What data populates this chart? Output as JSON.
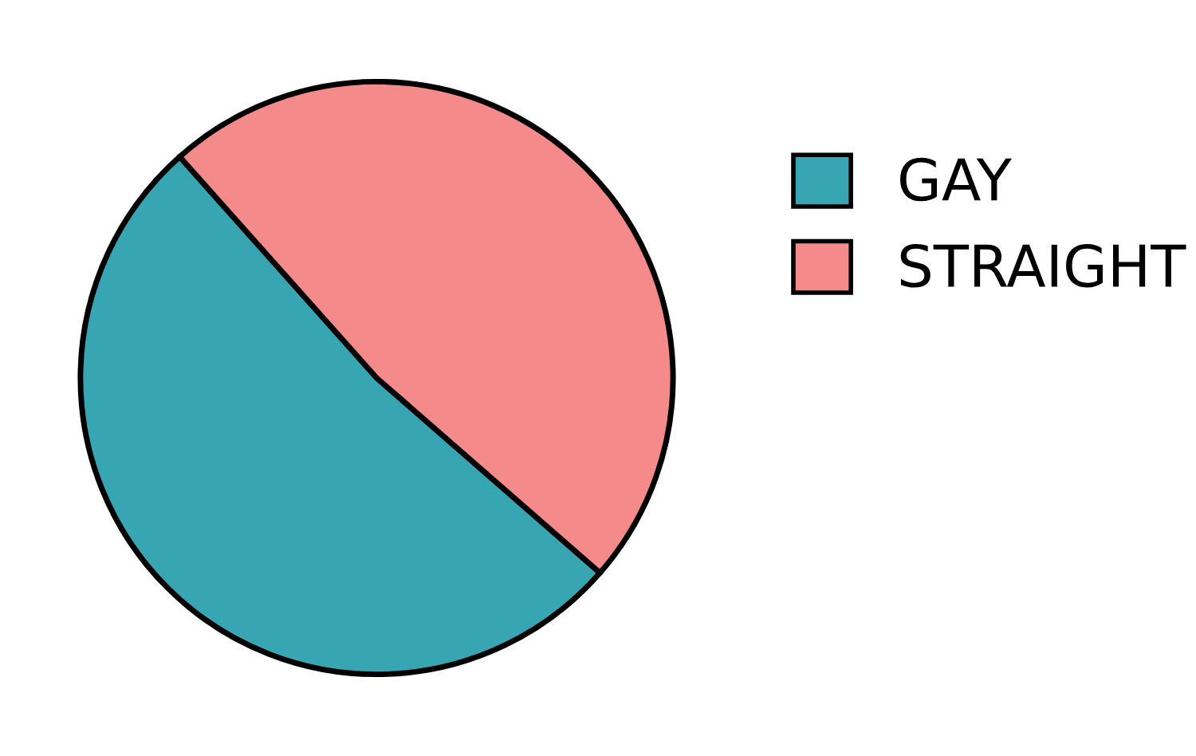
{
  "chart_data": {
    "type": "pie",
    "categories": [
      "GAY",
      "STRAIGHT"
    ],
    "values": [
      52,
      48
    ],
    "colors": [
      "#38a5b3",
      "#f48b8a"
    ],
    "legend": "right"
  }
}
